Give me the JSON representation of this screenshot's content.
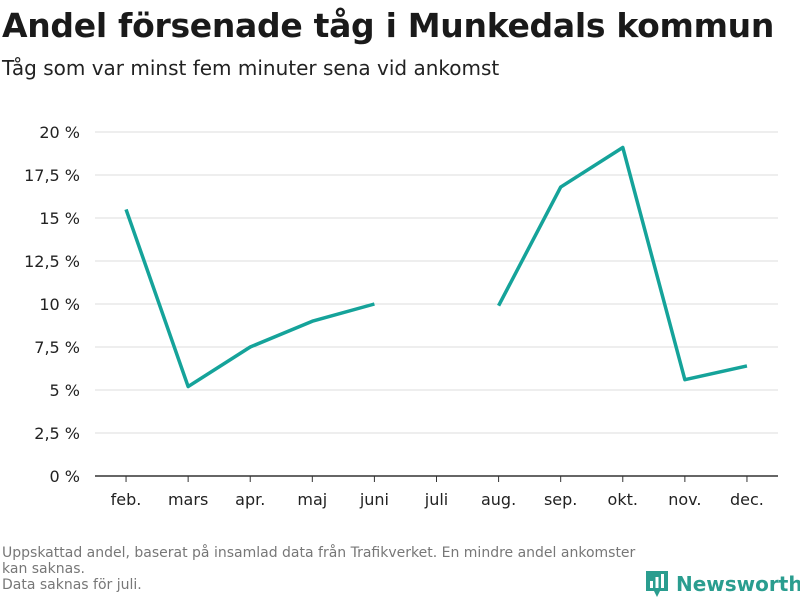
{
  "header": {
    "title": "Andel försenade tåg i Munkedals kommun",
    "subtitle": "Tåg som var minst fem minuter sena vid ankomst"
  },
  "footnote": {
    "line1": "Uppskattad andel, baserat på insamlad data från Trafikverket. En mindre andel ankomster kan saknas.",
    "line2": "Data saknas för juli."
  },
  "brand": {
    "name": "Newsworthy",
    "icon": "bar-chart-logo-icon",
    "color": "#2a9d8f"
  },
  "chart_data": {
    "type": "line",
    "title": "Andel försenade tåg i Munkedals kommun",
    "subtitle": "Tåg som var minst fem minuter sena vid ankomst",
    "categories": [
      "feb.",
      "mars",
      "apr.",
      "maj",
      "juni",
      "juli",
      "aug.",
      "sep.",
      "okt.",
      "nov.",
      "dec."
    ],
    "series": [
      {
        "values": [
          15.5,
          5.2,
          7.5,
          9.0,
          10.0,
          null,
          9.9,
          16.8,
          19.1,
          5.6,
          6.4
        ],
        "color": "#15a39a"
      }
    ],
    "ylim": [
      0,
      20
    ],
    "yticks": [
      0,
      2.5,
      5,
      7.5,
      10,
      12.5,
      15,
      17.5,
      20
    ],
    "ytick_labels": [
      "0 %",
      "2,5 %",
      "5 %",
      "7,5 %",
      "10 %",
      "12,5 %",
      "15 %",
      "17,5 %",
      "20 %"
    ],
    "grid": true,
    "gridColor": "#dddddd",
    "axisColor": "#333333"
  }
}
